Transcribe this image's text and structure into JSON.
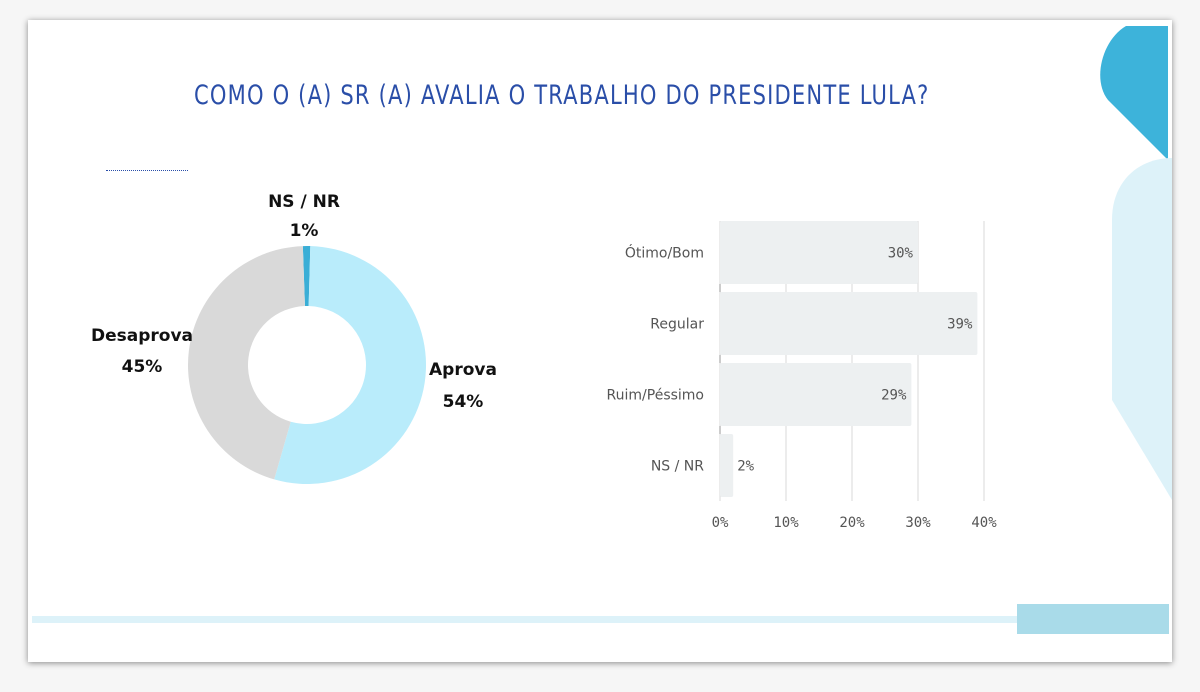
{
  "title": "COMO O (A) SR (A) AVALIA O TRABALHO DO PRESIDENTE LULA?",
  "colors": {
    "accent": "#3db3da",
    "accent_light": "#ddf2f9",
    "title": "#2a4ea8",
    "aprova": "#b9ecfb",
    "desaprova": "#d9d9d9",
    "nsnr_donut": "#3aaed6",
    "bar": "#edf0f1",
    "grid": "#d9d9d9"
  },
  "chart_data": [
    {
      "type": "pie",
      "slices": [
        {
          "name": "Aprova",
          "value": 54
        },
        {
          "name": "Desaprova",
          "value": 45
        },
        {
          "name": "NS / NR",
          "value": 1
        }
      ],
      "labels": {
        "aprova": {
          "name": "Aprova",
          "pct": "54%"
        },
        "desaprova": {
          "name": "Desaprova",
          "pct": "45%"
        },
        "nsnr": {
          "name": "NS / NR",
          "pct": "1%"
        }
      }
    },
    {
      "type": "bar",
      "orientation": "horizontal",
      "categories": [
        "Ótimo/Bom",
        "Regular",
        "Ruim/Péssimo",
        "NS / NR"
      ],
      "values": [
        30,
        39,
        29,
        2
      ],
      "value_labels": [
        "30%",
        "39%",
        "29%",
        "2%"
      ],
      "xlim": [
        0,
        40
      ],
      "xticks": [
        "0%",
        "10%",
        "20%",
        "30%",
        "40%"
      ],
      "grid": true
    }
  ]
}
